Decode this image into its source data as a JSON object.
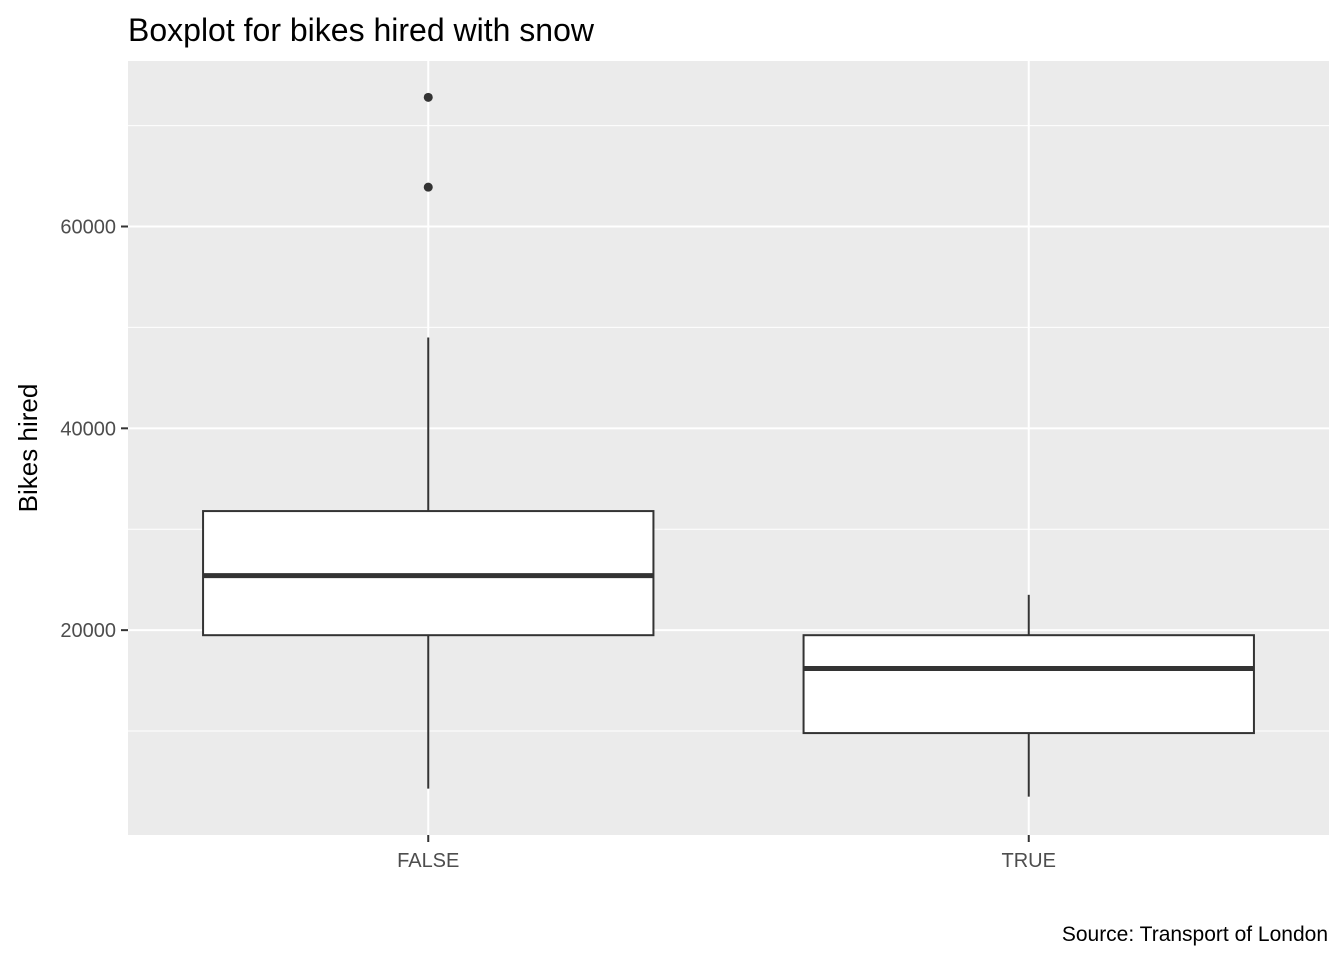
{
  "chart_data": {
    "type": "boxplot",
    "title": "Boxplot for bikes hired with snow",
    "xlabel": "",
    "ylabel": "Bikes hired",
    "caption": "Source: Transport of London",
    "categories": [
      "FALSE",
      "TRUE"
    ],
    "boxes": [
      {
        "category": "FALSE",
        "whisker_low": 4300,
        "q1": 19500,
        "median": 25400,
        "q3": 31800,
        "whisker_high": 49000,
        "outliers": [
          72800,
          63900
        ]
      },
      {
        "category": "TRUE",
        "whisker_low": 3500,
        "q1": 9800,
        "median": 16200,
        "q3": 19500,
        "whisker_high": 23500,
        "outliers": []
      }
    ],
    "y_ticks": [
      20000,
      40000,
      60000
    ],
    "ylim": [
      -300,
      76400
    ],
    "grid": true,
    "legend": "none",
    "colors": {
      "panel": "#EBEBEB",
      "grid": "#FFFFFF",
      "box_fill": "#FFFFFF",
      "box_line": "#333333",
      "tick_text": "#4D4D4D"
    }
  }
}
